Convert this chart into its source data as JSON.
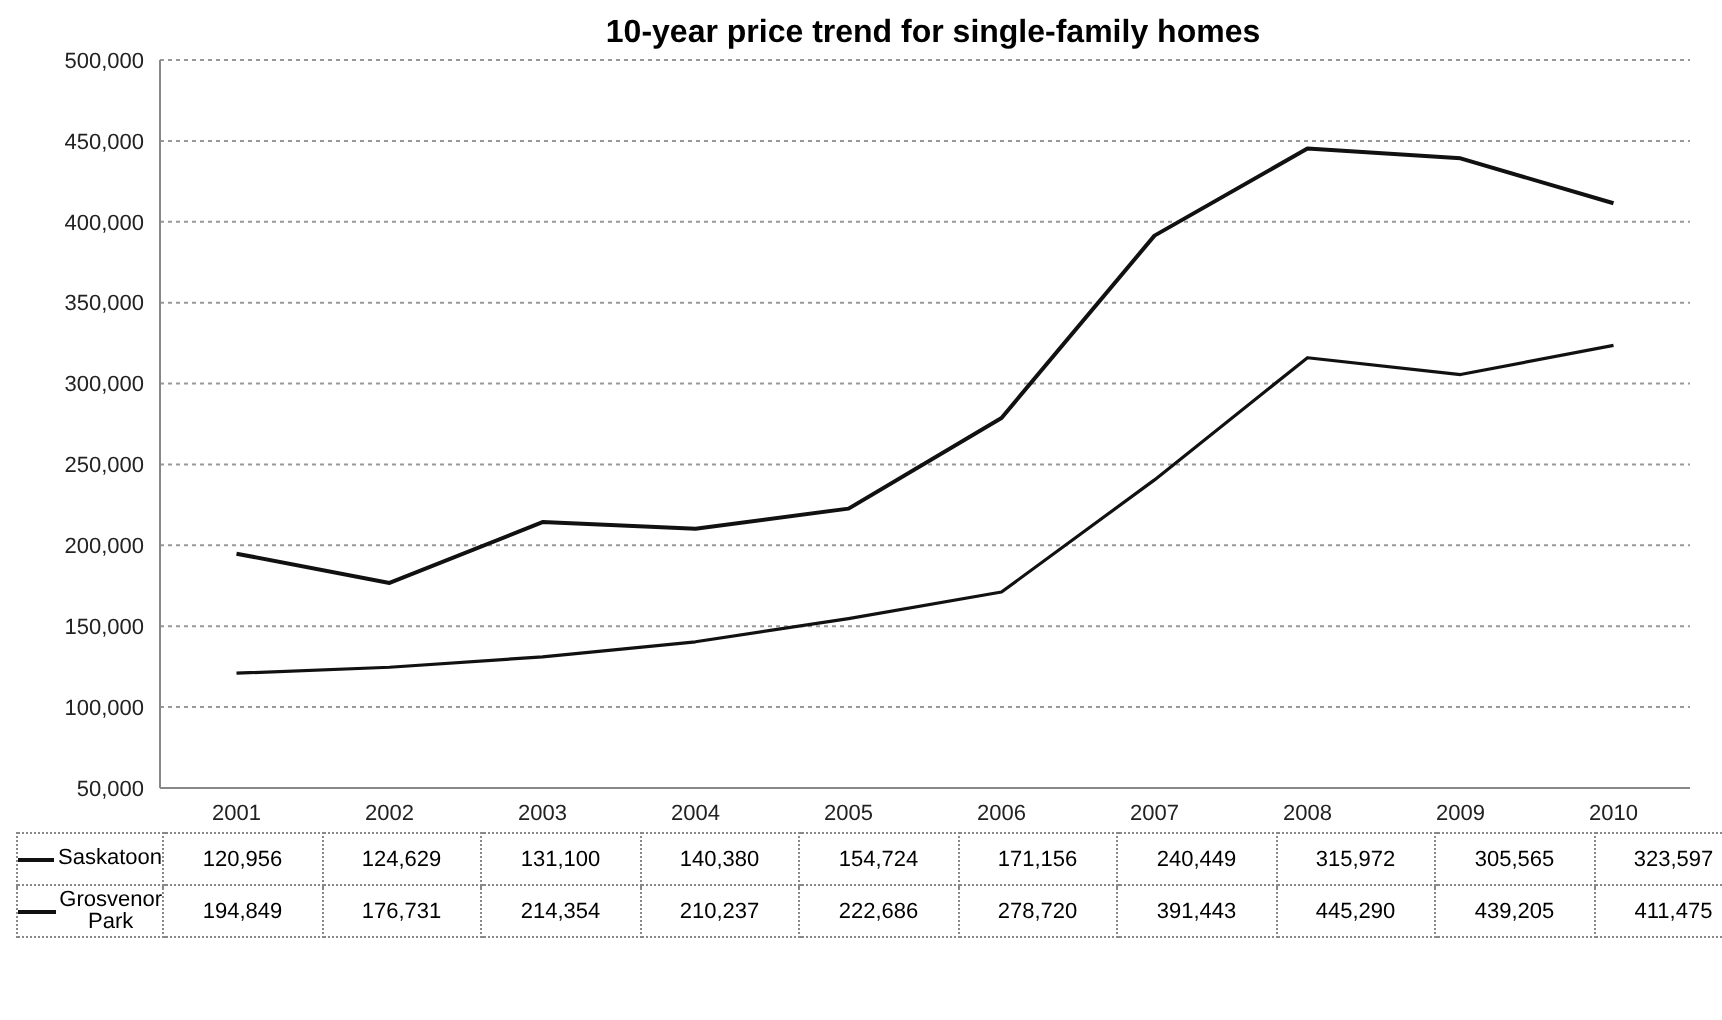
{
  "chart_data": {
    "type": "line",
    "title": "10-year price trend for single-family homes",
    "categories": [
      "2001",
      "2002",
      "2003",
      "2004",
      "2005",
      "2006",
      "2007",
      "2008",
      "2009",
      "2010"
    ],
    "series": [
      {
        "name": "Saskatoon",
        "color": "#111111",
        "values": [
          120956,
          124629,
          131100,
          140380,
          154724,
          171156,
          240449,
          315972,
          305565,
          323597
        ],
        "value_labels": [
          "120,956",
          "124,629",
          "131,100",
          "140,380",
          "154,724",
          "171,156",
          "240,449",
          "315,972",
          "305,565",
          "323,597"
        ]
      },
      {
        "name": "Grosvenor Park",
        "color": "#111111",
        "values": [
          194849,
          176731,
          214354,
          210237,
          222686,
          278720,
          391443,
          445290,
          439205,
          411475
        ],
        "value_labels": [
          "194,849",
          "176,731",
          "214,354",
          "210,237",
          "222,686",
          "278,720",
          "391,443",
          "445,290",
          "439,205",
          "411,475"
        ]
      }
    ],
    "ylim": [
      50000,
      500000
    ],
    "yticks": [
      {
        "value": 50000,
        "label": "50,000"
      },
      {
        "value": 100000,
        "label": "100,000"
      },
      {
        "value": 150000,
        "label": "150,000"
      },
      {
        "value": 200000,
        "label": "200,000"
      },
      {
        "value": 250000,
        "label": "250,000"
      },
      {
        "value": 300000,
        "label": "300,000"
      },
      {
        "value": 350000,
        "label": "350,000"
      },
      {
        "value": 400000,
        "label": "400,000"
      },
      {
        "value": 450000,
        "label": "450,000"
      },
      {
        "value": 500000,
        "label": "500,000"
      }
    ],
    "grid": "y",
    "legend": "bottom",
    "marker": "none",
    "line_style": "solid"
  }
}
